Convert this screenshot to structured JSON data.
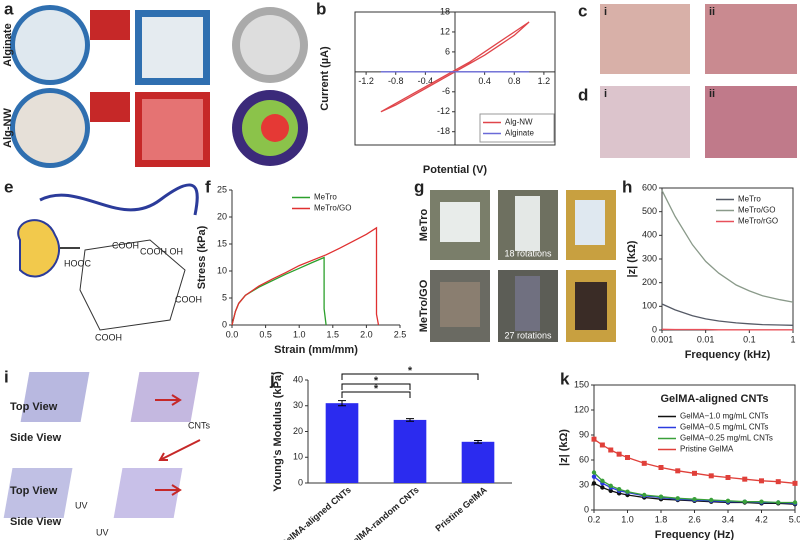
{
  "panels": {
    "a": {
      "letter": "a",
      "labels": [
        "Alginate",
        "Alg-NW"
      ]
    },
    "b": {
      "letter": "b"
    },
    "c": {
      "letter": "c",
      "labels": [
        "i",
        "ii"
      ]
    },
    "d": {
      "letter": "d",
      "labels": [
        "i",
        "ii"
      ]
    },
    "e": {
      "letter": "e",
      "labels": [
        "HOOC",
        "COOH",
        "COOH OH",
        "COOH",
        "COOH"
      ]
    },
    "f": {
      "letter": "f"
    },
    "g": {
      "letter": "g",
      "labels": [
        "MeTro",
        "MeTro/GO",
        "18 rotations",
        "27 rotations"
      ]
    },
    "h": {
      "letter": "h"
    },
    "i": {
      "letter": "i",
      "labels": [
        "Top View",
        "Side View",
        "Top View",
        "Side View",
        "CNTs",
        "UV",
        "UV"
      ]
    },
    "j": {
      "letter": "j"
    },
    "k": {
      "letter": "k"
    }
  },
  "chart_data": [
    {
      "type": "line",
      "xlabel": "Potential (V)",
      "ylabel": "Current (µA)",
      "axis_position": "zero",
      "frame": true,
      "legend": "lower right",
      "xlim": [
        -1.35,
        1.35
      ],
      "ylim": [
        -22,
        18
      ],
      "xticks": [
        -1.2,
        -0.8,
        -0.4,
        0.4,
        0.8,
        1.2
      ],
      "yticks": [
        -18,
        -12,
        -6,
        6,
        12,
        18
      ],
      "x": [
        -1.0,
        -0.8,
        -0.6,
        -0.4,
        -0.2,
        0,
        0.2,
        0.4,
        0.6,
        0.8,
        1.0,
        0.8,
        0.6,
        0.4,
        0.2,
        0,
        -0.2,
        -0.4,
        -0.6,
        -0.8,
        -1.0
      ],
      "series": [
        {
          "name": "Alg-NW",
          "color": "#e0454a",
          "values": [
            -12,
            -10,
            -7.5,
            -5,
            -2.5,
            0,
            2.5,
            5,
            8,
            11,
            15,
            12,
            9,
            6,
            3,
            0.5,
            -2,
            -4.5,
            -7,
            -9.5,
            -12
          ]
        },
        {
          "name": "Alginate",
          "color": "#6a6ad8",
          "values": [
            0,
            0,
            0,
            0,
            0,
            0,
            0,
            0,
            0,
            0,
            0,
            0,
            0,
            0,
            0,
            0,
            0,
            0,
            0,
            0,
            0
          ]
        }
      ]
    },
    {
      "type": "line",
      "xlabel": "Strain (mm/mm)",
      "ylabel": "Stress (kPa)",
      "legend": "upper center",
      "xlim": [
        0,
        2.5
      ],
      "ylim": [
        0,
        25
      ],
      "xticks": [
        {
          "value": 0,
          "label": "0.0"
        },
        0.5,
        {
          "value": 1,
          "label": "1.0"
        },
        1.5,
        {
          "value": 2,
          "label": "2.0"
        },
        2.5
      ],
      "yticks": [
        0,
        5,
        10,
        15,
        20,
        25
      ],
      "series": [
        {
          "name": "MeTro",
          "color": "#2ca02c",
          "x": [
            0,
            0.05,
            0.1,
            0.2,
            0.4,
            0.6,
            0.8,
            1.0,
            1.2,
            1.37,
            1.37,
            1.4
          ],
          "values": [
            0,
            2.5,
            4,
            5.5,
            7,
            8.2,
            9.4,
            10.5,
            11.6,
            12.5,
            3,
            0
          ]
        },
        {
          "name": "MeTro/GO",
          "color": "#e03030",
          "x": [
            0,
            0.05,
            0.1,
            0.2,
            0.4,
            0.6,
            0.8,
            1.0,
            1.2,
            1.4,
            1.6,
            1.8,
            2.0,
            2.15,
            2.15,
            2.18
          ],
          "values": [
            0,
            2.5,
            4,
            5.5,
            7.2,
            8.5,
            9.7,
            11,
            12,
            13,
            14.2,
            15.5,
            16.8,
            18,
            2,
            0
          ]
        }
      ]
    },
    {
      "type": "line",
      "xlabel": "Frequency (kHz)",
      "ylabel": "|z| (kΩ)",
      "xscale": "log",
      "frame": true,
      "legend": "upper right",
      "xlim": [
        0.001,
        1
      ],
      "ylim": [
        0,
        600
      ],
      "xticks": [
        0.001,
        0.01,
        0.1,
        1
      ],
      "yticks": [
        0,
        100,
        200,
        300,
        400,
        500,
        600
      ],
      "x": [
        0.001,
        0.002,
        0.005,
        0.01,
        0.02,
        0.05,
        0.1,
        0.2,
        0.5,
        1
      ],
      "series": [
        {
          "name": "MeTro",
          "color": "#555a66",
          "values": [
            110,
            85,
            60,
            47,
            38,
            30,
            26,
            23,
            21,
            20
          ]
        },
        {
          "name": "MeTro/GO",
          "color": "#8a9a8a",
          "values": [
            590,
            480,
            360,
            290,
            240,
            190,
            165,
            145,
            128,
            118
          ]
        },
        {
          "name": "MeTro/rGO",
          "color": "#e8505a",
          "values": [
            3,
            2,
            2,
            2,
            1,
            1,
            1,
            1,
            1,
            1
          ]
        }
      ]
    },
    {
      "type": "bar",
      "ylabel": "Young's Modulus (kPa)",
      "color": "#2b2bef",
      "categories": [
        "GelMA-aligned CNTs",
        "GelMA-random CNTs",
        "Pristine GelMA"
      ],
      "values": [
        31,
        24.5,
        16
      ],
      "errors": [
        1,
        0.5,
        0.5
      ],
      "ylim": [
        0,
        40
      ],
      "yticks": [
        0,
        10,
        20,
        30,
        40
      ],
      "annotations": [
        "*",
        "*",
        "*"
      ]
    },
    {
      "type": "line",
      "title": "GelMA-aligned CNTs",
      "xlabel": "Frequency (Hz)",
      "ylabel": "|z| (kΩ)",
      "frame": true,
      "legend": "upper right",
      "markers": true,
      "xlim": [
        0.2,
        5.0
      ],
      "ylim": [
        0,
        150
      ],
      "xticks": [
        0.2,
        {
          "value": 1,
          "label": "1.0"
        },
        1.8,
        2.6,
        3.4,
        4.2,
        {
          "value": 5,
          "label": "5.0"
        }
      ],
      "yticks": [
        0,
        30,
        60,
        90,
        120,
        150
      ],
      "x": [
        0.2,
        0.4,
        0.6,
        0.8,
        1.0,
        1.4,
        1.8,
        2.2,
        2.6,
        3.0,
        3.4,
        3.8,
        4.2,
        4.6,
        5.0
      ],
      "series": [
        {
          "name": "GelMA−1.0 mg/mL CNTs",
          "color": "#111111",
          "values": [
            32,
            27,
            23,
            20,
            18,
            15,
            13,
            12,
            11,
            10,
            9,
            9,
            8,
            8,
            7
          ]
        },
        {
          "name": "GelMA−0.5 mg/mL CNTs",
          "color": "#2b3bdf",
          "values": [
            40,
            32,
            27,
            23,
            21,
            17,
            15,
            13,
            12,
            11,
            10,
            10,
            9,
            9,
            8
          ]
        },
        {
          "name": "GelMA−0.25 mg/mL CNTs",
          "color": "#3aa03a",
          "values": [
            45,
            35,
            29,
            25,
            22,
            18,
            16,
            14,
            13,
            12,
            11,
            10,
            10,
            9,
            9
          ]
        },
        {
          "name": "Pristine GelMA",
          "color": "#e0403a",
          "values": [
            85,
            78,
            72,
            67,
            63,
            56,
            51,
            47,
            44,
            41,
            39,
            37,
            35,
            34,
            32
          ]
        }
      ]
    }
  ]
}
